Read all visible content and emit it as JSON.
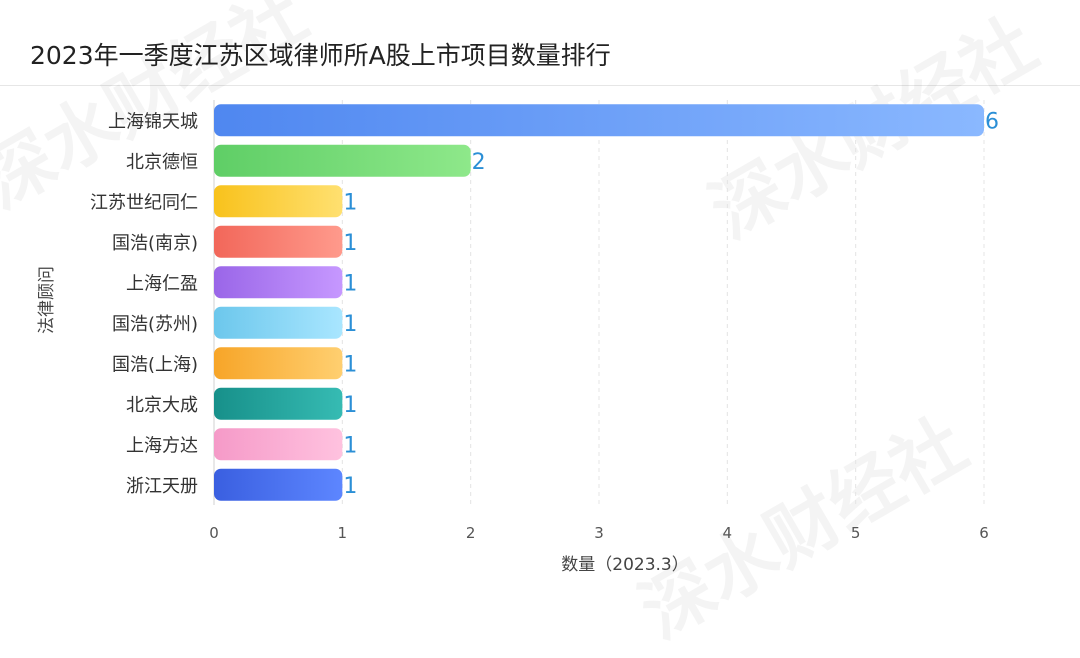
{
  "chart_data": {
    "type": "bar",
    "orientation": "horizontal",
    "title": "2023年一季度江苏区域律师所A股上市项目数量排行",
    "xlabel": "数量（2023.3）",
    "ylabel": "法律顾问",
    "xlim": [
      0,
      6
    ],
    "xticks": [
      "0",
      "1",
      "2",
      "3",
      "4",
      "5",
      "6"
    ],
    "grid": "vertical-dashed",
    "categories": [
      "上海锦天城",
      "北京德恒",
      "江苏世纪同仁",
      "国浩(南京)",
      "上海仁盈",
      "国浩(苏州)",
      "国浩(上海)",
      "北京大成",
      "上海方达",
      "浙江天册"
    ],
    "values": [
      6,
      2,
      1,
      1,
      1,
      1,
      1,
      1,
      1,
      1
    ],
    "value_labels": [
      "6",
      "2",
      "1",
      "1",
      "1",
      "1",
      "1",
      "1",
      "1",
      "1"
    ],
    "colors": [
      [
        "#4f87f0",
        "#8ab8ff"
      ],
      [
        "#5fce66",
        "#8ee88a"
      ],
      [
        "#f8c21c",
        "#ffe070"
      ],
      [
        "#f2675a",
        "#ff9a8c"
      ],
      [
        "#9a66e8",
        "#c698ff"
      ],
      [
        "#6cc7ec",
        "#a9e6ff"
      ],
      [
        "#f7a528",
        "#ffcf70"
      ],
      [
        "#17908a",
        "#36bbb3"
      ],
      [
        "#f59ac8",
        "#ffc2df"
      ],
      [
        "#3a5fe0",
        "#5d86ff"
      ]
    ]
  },
  "watermark": {
    "text": "深水财经社"
  }
}
